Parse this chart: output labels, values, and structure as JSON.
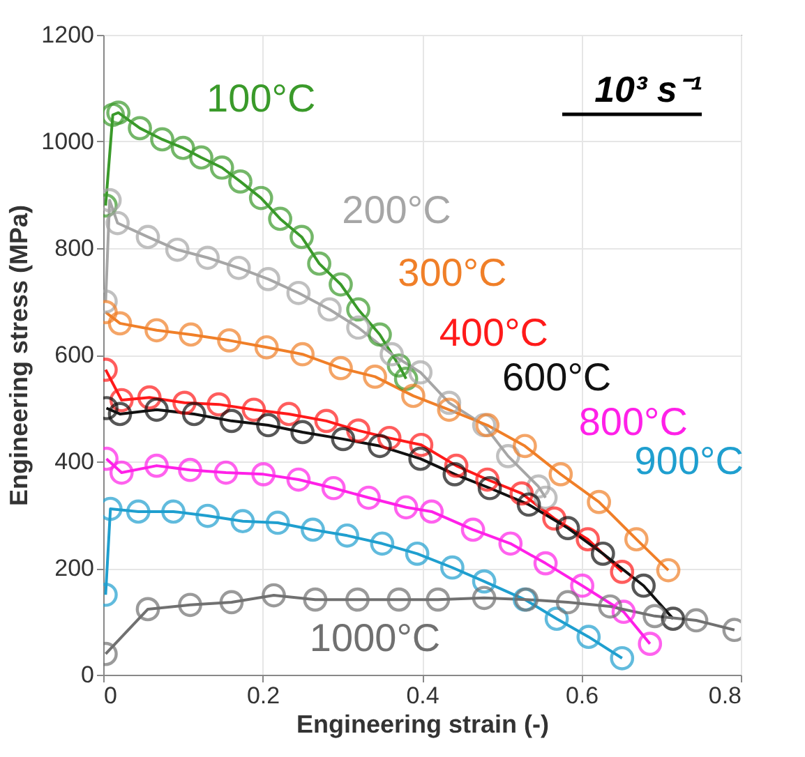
{
  "chart_data": {
    "type": "line",
    "title": "10³ s⁻¹",
    "xlabel": "Engineering strain (-)",
    "ylabel": "Engineering stress (MPa)",
    "xlim": [
      0,
      0.8
    ],
    "xticks": [
      0,
      0.2,
      0.4,
      0.6,
      0.8
    ],
    "ylim": [
      0,
      1200
    ],
    "yticks": [
      0,
      200,
      400,
      600,
      800,
      1000,
      1200
    ],
    "grid": true,
    "legend": false,
    "marker": "circle",
    "line_style": "solid",
    "series": [
      {
        "name": "100°C",
        "color": "#3a9a2a",
        "x": [
          0.003,
          0.012,
          0.019,
          0.046,
          0.074,
          0.1,
          0.123,
          0.149,
          0.172,
          0.198,
          0.222,
          0.249,
          0.271,
          0.298,
          0.32,
          0.347,
          0.371,
          0.38
        ],
        "values": [
          880,
          1050,
          1054,
          1025,
          1004,
          988,
          970,
          951,
          925,
          894,
          855,
          821,
          771,
          732,
          685,
          638,
          580,
          555
        ]
      },
      {
        "name": "200°C",
        "color": "#a6a6a6",
        "x": [
          0.003,
          0.008,
          0.018,
          0.056,
          0.093,
          0.131,
          0.17,
          0.207,
          0.245,
          0.284,
          0.32,
          0.362,
          0.398,
          0.434,
          0.478,
          0.508,
          0.546,
          0.555
        ],
        "values": [
          700,
          890,
          847,
          821,
          797,
          782,
          763,
          742,
          716,
          685,
          651,
          601,
          567,
          510,
          468,
          410,
          353,
          332
        ]
      },
      {
        "name": "300°C",
        "color": "#f07f28",
        "x": [
          0.003,
          0.021,
          0.067,
          0.11,
          0.158,
          0.205,
          0.25,
          0.298,
          0.341,
          0.389,
          0.434,
          0.482,
          0.529,
          0.574,
          0.622,
          0.669,
          0.709
        ],
        "values": [
          680,
          659,
          646,
          638,
          627,
          614,
          601,
          575,
          559,
          523,
          497,
          468,
          429,
          376,
          324,
          254,
          196
        ]
      },
      {
        "name": "400°C",
        "color": "#ff1a1a",
        "x": [
          0.003,
          0.023,
          0.058,
          0.102,
          0.145,
          0.189,
          0.233,
          0.28,
          0.32,
          0.359,
          0.399,
          0.443,
          0.482,
          0.525,
          0.566,
          0.608,
          0.651
        ],
        "values": [
          572,
          515,
          520,
          510,
          507,
          497,
          489,
          476,
          458,
          444,
          431,
          392,
          366,
          340,
          293,
          254,
          193
        ]
      },
      {
        "name": "600°C",
        "color": "#111111",
        "x": [
          0.004,
          0.021,
          0.067,
          0.114,
          0.161,
          0.207,
          0.25,
          0.301,
          0.347,
          0.398,
          0.441,
          0.485,
          0.534,
          0.583,
          0.627,
          0.678,
          0.715
        ],
        "values": [
          500,
          489,
          497,
          489,
          476,
          468,
          455,
          442,
          429,
          405,
          376,
          350,
          319,
          275,
          227,
          167,
          105
        ]
      },
      {
        "name": "800°C",
        "color": "#ff20e8",
        "x": [
          0.004,
          0.023,
          0.067,
          0.109,
          0.154,
          0.201,
          0.245,
          0.289,
          0.333,
          0.38,
          0.412,
          0.464,
          0.511,
          0.555,
          0.601,
          0.653,
          0.686
        ],
        "values": [
          405,
          379,
          392,
          384,
          379,
          376,
          366,
          350,
          332,
          314,
          306,
          272,
          246,
          209,
          167,
          118,
          58
        ]
      },
      {
        "name": "900°C",
        "color": "#1f9fcf",
        "x": [
          0.003,
          0.009,
          0.044,
          0.088,
          0.131,
          0.175,
          0.219,
          0.263,
          0.306,
          0.35,
          0.394,
          0.438,
          0.478,
          0.529,
          0.569,
          0.609,
          0.651
        ],
        "values": [
          150,
          311,
          306,
          306,
          298,
          288,
          285,
          272,
          261,
          246,
          227,
          201,
          175,
          141,
          105,
          71,
          31
        ]
      },
      {
        "name": "1000°C",
        "color": "#707070",
        "x": [
          0.003,
          0.056,
          0.109,
          0.161,
          0.214,
          0.266,
          0.319,
          0.371,
          0.42,
          0.478,
          0.531,
          0.583,
          0.636,
          0.692,
          0.744,
          0.792
        ],
        "values": [
          39,
          123,
          131,
          136,
          149,
          141,
          141,
          141,
          141,
          144,
          141,
          136,
          128,
          110,
          102,
          84
        ]
      }
    ]
  }
}
